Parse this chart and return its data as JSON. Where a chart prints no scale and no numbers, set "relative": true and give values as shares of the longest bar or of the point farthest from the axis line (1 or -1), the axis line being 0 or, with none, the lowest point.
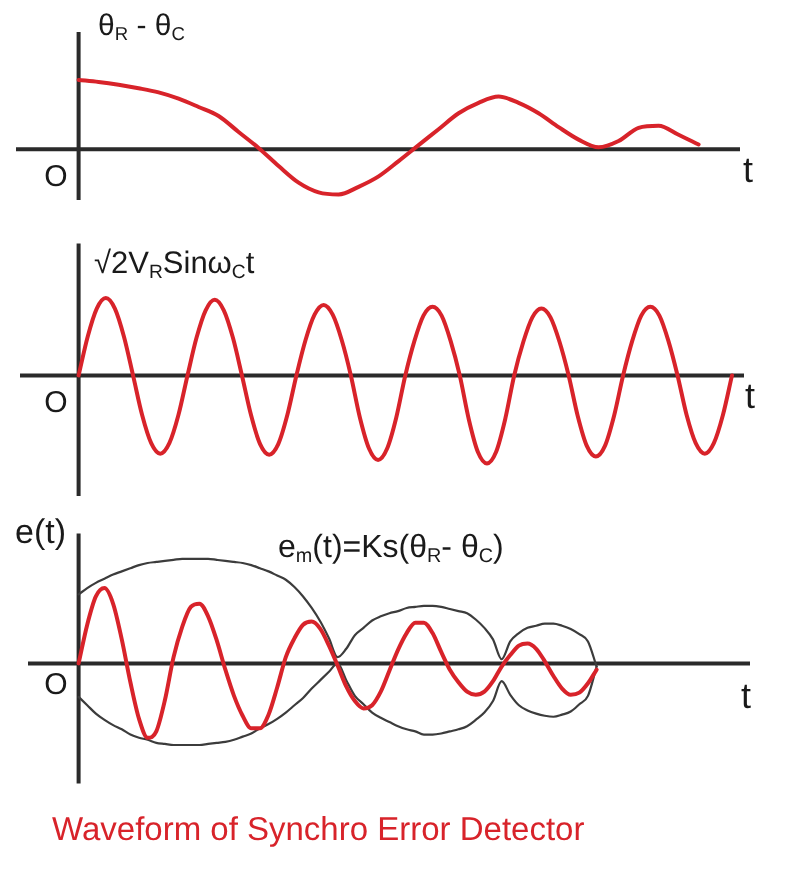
{
  "chart_data": [
    {
      "type": "line",
      "relative": true,
      "ylabel": "θ$_{R}$ - θ$_{C}$",
      "xlabel": "t",
      "annotations": [
        "O"
      ],
      "categories": [
        null,
        null,
        null,
        null,
        null,
        null,
        null,
        null,
        null,
        null,
        null,
        null,
        null,
        null,
        null,
        null,
        null,
        null,
        null,
        null,
        null,
        null,
        null,
        null,
        null,
        null,
        null,
        null,
        null,
        null,
        null,
        null
      ],
      "series": [
        {
          "color": "#d8232a",
          "values": [
            1,
            0.97,
            0.93,
            0.88,
            0.82,
            0.73,
            0.61,
            0.48,
            0.25,
            0.02,
            -0.24,
            -0.48,
            -0.62,
            -0.65,
            -0.54,
            -0.39,
            -0.17,
            0.06,
            0.29,
            0.52,
            0.67,
            0.76,
            0.67,
            0.52,
            0.32,
            0.14,
            0.03,
            0.12,
            0.31,
            0.34,
            0.21,
            0.07
          ]
        }
      ]
    },
    {
      "type": "line",
      "relative": true,
      "ylabel": "√2V$_{R}$Sinω$_{C}$t",
      "xlabel": "t",
      "annotations": [
        "O"
      ],
      "categories": [
        null,
        null,
        null,
        null,
        null,
        null,
        null,
        null,
        null,
        null,
        null,
        null,
        null,
        null,
        null,
        null,
        null,
        null,
        null,
        null,
        null,
        null,
        null,
        null,
        null,
        null,
        null,
        null,
        null,
        null,
        null,
        null,
        null,
        null,
        null,
        null,
        null,
        null,
        null,
        null,
        null,
        null,
        null,
        null,
        null,
        null,
        null,
        null,
        null,
        null,
        null,
        null,
        null,
        null,
        null,
        null,
        null,
        null,
        null,
        null,
        null,
        null,
        null,
        null,
        null,
        null,
        null,
        null,
        null,
        null,
        null,
        null,
        null
      ],
      "series": [
        {
          "color": "#d8232a",
          "values": [
            0,
            0.44,
            0.76,
            0.88,
            0.76,
            0.44,
            0,
            -0.45,
            -0.77,
            -0.89,
            -0.77,
            -0.45,
            0,
            0.43,
            0.74,
            0.86,
            0.74,
            0.43,
            0,
            -0.45,
            -0.78,
            -0.9,
            -0.78,
            -0.45,
            0,
            0.4,
            0.69,
            0.8,
            0.69,
            0.4,
            0,
            -0.48,
            -0.83,
            -0.96,
            -0.83,
            -0.48,
            0,
            0.39,
            0.68,
            0.78,
            0.68,
            0.39,
            0,
            -0.5,
            -0.87,
            -1,
            -0.87,
            -0.5,
            0,
            0.38,
            0.66,
            0.76,
            0.66,
            0.38,
            0,
            -0.46,
            -0.8,
            -0.92,
            -0.8,
            -0.46,
            0,
            0.39,
            0.68,
            0.78,
            0.68,
            0.39,
            0,
            -0.45,
            -0.77,
            -0.89,
            -0.77,
            -0.45,
            0
          ]
        }
      ]
    },
    {
      "type": "line",
      "relative": true,
      "ylabel": "e(t)",
      "xlabel": "t",
      "annotations": [
        "O",
        "e$_{m}$(t)=Ks(θ$_{R}$- θ$_{C}$)",
        "Waveform of Synchro Error Detector"
      ],
      "categories": [
        null,
        null,
        null,
        null,
        null,
        null,
        null,
        null,
        null,
        null,
        null,
        null,
        null,
        null,
        null,
        null,
        null,
        null,
        null,
        null,
        null,
        null,
        null,
        null,
        null,
        null,
        null,
        null,
        null,
        null,
        null,
        null,
        null,
        null,
        null,
        null,
        null,
        null,
        null,
        null,
        null,
        null,
        null,
        null,
        null,
        null,
        null,
        null,
        null,
        null,
        null,
        null,
        null,
        null,
        null,
        null,
        null,
        null,
        null,
        null,
        null
      ],
      "series": [
        {
          "color": "#d8232a",
          "values": [
            0,
            0.37,
            0.64,
            0.72,
            0.57,
            0.23,
            -0.18,
            -0.53,
            -0.71,
            -0.65,
            -0.35,
            0.06,
            0.35,
            0.54,
            0.57,
            0.45,
            0.22,
            -0.06,
            -0.31,
            -0.5,
            -0.62,
            -0.62,
            -0.49,
            -0.23,
            0.06,
            0.24,
            0.37,
            0.4,
            0.33,
            0.17,
            -0.02,
            -0.22,
            -0.36,
            -0.43,
            -0.4,
            -0.27,
            -0.07,
            0.13,
            0.29,
            0.39,
            0.39,
            0.29,
            0.11,
            -0.06,
            -0.18,
            -0.27,
            -0.3,
            -0.27,
            -0.17,
            -0.03,
            0.08,
            0.17,
            0.19,
            0.14,
            0.02,
            -0.12,
            -0.24,
            -0.3,
            -0.28,
            -0.19,
            -0.06
          ]
        },
        {
          "color": "#3c3c3c",
          "values": [
            0.66,
            0.72,
            0.77,
            0.81,
            0.85,
            0.88,
            0.91,
            0.94,
            0.96,
            0.97,
            0.98,
            0.99,
            1,
            1,
            1,
            1,
            0.99,
            0.98,
            0.97,
            0.96,
            0.94,
            0.91,
            0.88,
            0.84,
            0.8,
            0.73,
            0.64,
            0.53,
            0.4,
            0.24,
            0.06,
            0.14,
            0.27,
            0.34,
            0.41,
            0.45,
            0.48,
            0.5,
            0.53,
            0.54,
            0.55,
            0.55,
            0.54,
            0.52,
            0.5,
            0.48,
            0.42,
            0.34,
            0.23,
            0.04,
            0.21,
            0.29,
            0.34,
            0.36,
            0.38,
            0.38,
            0.36,
            0.33,
            0.28,
            0.21,
            -0.03
          ]
        },
        {
          "color": "#3c3c3c",
          "values": [
            -0.32,
            -0.4,
            -0.48,
            -0.54,
            -0.59,
            -0.63,
            -0.68,
            -0.71,
            -0.73,
            -0.76,
            -0.77,
            -0.78,
            -0.78,
            -0.78,
            -0.78,
            -0.77,
            -0.76,
            -0.75,
            -0.73,
            -0.7,
            -0.67,
            -0.62,
            -0.58,
            -0.53,
            -0.47,
            -0.4,
            -0.33,
            -0.24,
            -0.16,
            -0.08,
            0,
            -0.16,
            -0.31,
            -0.39,
            -0.47,
            -0.52,
            -0.56,
            -0.6,
            -0.63,
            -0.65,
            -0.68,
            -0.68,
            -0.67,
            -0.65,
            -0.63,
            -0.6,
            -0.54,
            -0.47,
            -0.36,
            -0.17,
            -0.3,
            -0.4,
            -0.45,
            -0.48,
            -0.5,
            -0.51,
            -0.49,
            -0.46,
            -0.39,
            -0.31,
            -0.03
          ]
        }
      ]
    }
  ]
}
